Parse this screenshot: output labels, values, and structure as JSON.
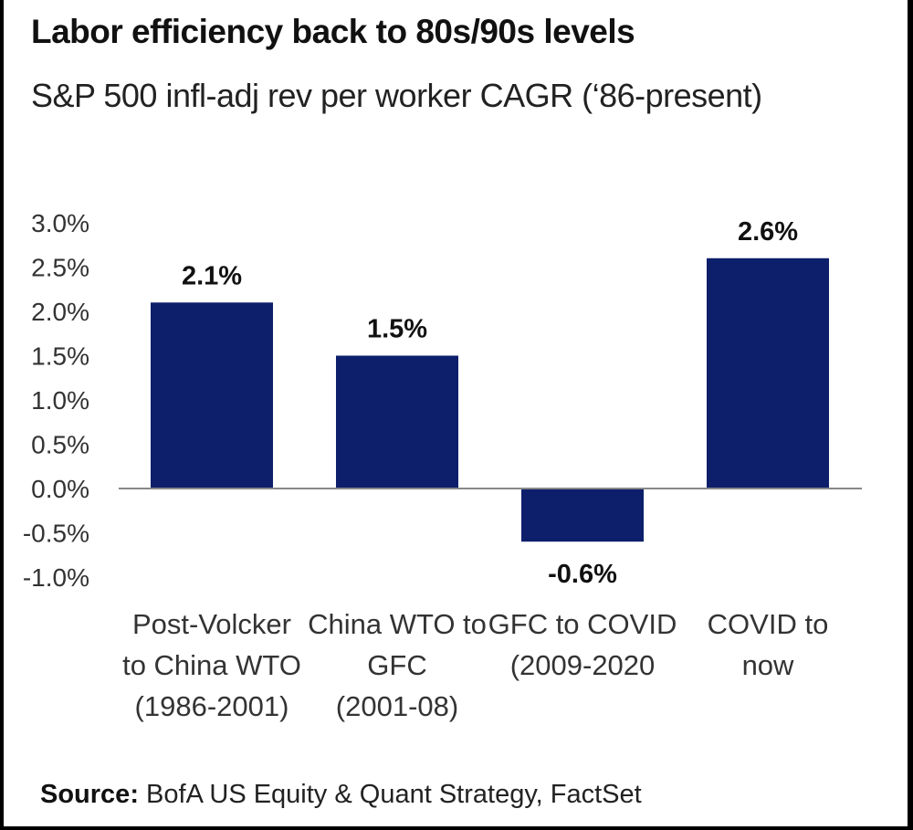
{
  "header": {
    "title": "Labor efficiency back to 80s/90s levels",
    "subtitle": "S&P 500 infl-adj  rev per worker CAGR (‘86-present)"
  },
  "footer": {
    "source_label": "Source:",
    "source_text": " BofA US Equity & Quant Strategy, FactSet"
  },
  "colors": {
    "bar": "#0d1f6b",
    "axis": "#888888"
  },
  "chart_data": {
    "type": "bar",
    "title": "Labor efficiency back to 80s/90s levels",
    "subtitle": "S&P 500 infl-adj  rev per worker CAGR (‘86-present)",
    "categories": [
      [
        "Post-Volcker",
        "to China WTO",
        "(1986-2001)"
      ],
      [
        "China WTO to",
        "GFC",
        "(2001-08)"
      ],
      [
        "GFC to COVID",
        "(2009-2020"
      ],
      [
        "COVID to",
        "now"
      ]
    ],
    "values": [
      2.1,
      1.5,
      -0.6,
      2.6
    ],
    "data_labels": [
      "2.1%",
      "1.5%",
      "-0.6%",
      "2.6%"
    ],
    "ylim": [
      -1.0,
      3.0
    ],
    "yticks": [
      "3.0%",
      "2.5%",
      "2.0%",
      "1.5%",
      "1.0%",
      "0.5%",
      "0.0%",
      "-0.5%",
      "-1.0%"
    ],
    "ytick_values": [
      3.0,
      2.5,
      2.0,
      1.5,
      1.0,
      0.5,
      0.0,
      -0.5,
      -1.0
    ],
    "xlabel": "",
    "ylabel": "",
    "grid": false,
    "legend": "none"
  }
}
